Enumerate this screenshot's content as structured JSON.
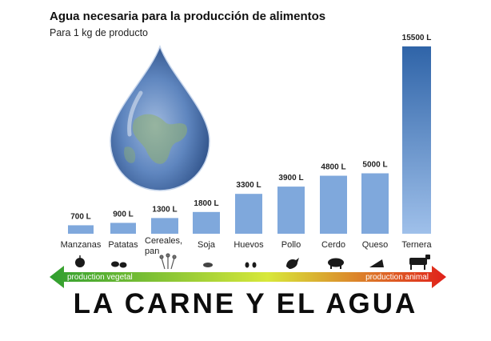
{
  "header": {
    "title": "Agua necesaria para la producción de alimentos",
    "subtitle": "Para 1 kg de producto"
  },
  "chart_data": {
    "type": "bar",
    "categories": [
      "Manzanas",
      "Patatas",
      "Cereales, pan",
      "Soja",
      "Huevos",
      "Pollo",
      "Cerdo",
      "Queso",
      "Ternera"
    ],
    "values": [
      700,
      900,
      1300,
      1800,
      3300,
      3900,
      4800,
      5000,
      15500
    ],
    "value_labels": [
      "700 L",
      "900 L",
      "1300 L",
      "1800 L",
      "3300 L",
      "3900 L",
      "4800 L",
      "5000 L",
      "15500 L"
    ],
    "unit": "L",
    "ylim": [
      0,
      15500
    ],
    "grid": false,
    "bar_color": "#7fa8dc",
    "tall_bar_color": "#3a6fb0"
  },
  "arrow": {
    "left_label": "production vegetal",
    "right_label": "production animal",
    "colors": [
      "#2f9e2f",
      "#d8e83a",
      "#e0201a"
    ]
  },
  "footer": {
    "headline": "LA CARNE Y EL AGUA"
  },
  "icons": [
    "apple-icon",
    "potatoes-icon",
    "wheat-icon",
    "soybean-icon",
    "eggs-icon",
    "chicken-icon",
    "pig-icon",
    "cheese-icon",
    "cow-icon"
  ]
}
